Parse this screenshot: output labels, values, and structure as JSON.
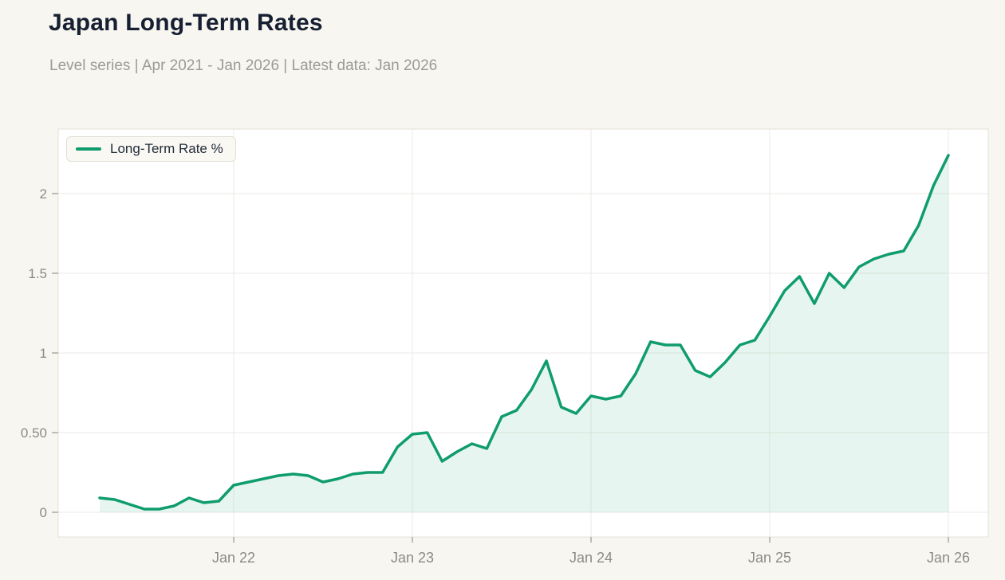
{
  "header": {
    "title": "Japan Long-Term Rates",
    "subtitle": "Level series | Apr 2021 - Jan 2026 | Latest data: Jan 2026"
  },
  "legend": {
    "label": "Long-Term Rate %"
  },
  "colors": {
    "background": "#f8f6f0",
    "plot_background": "#ffffff",
    "line": "#0f9c6e",
    "area_fill": "rgba(15,156,110,0.10)",
    "grid": "#ebeae6",
    "axis_border": "#e3e0d9",
    "tick": "#aaa8a2",
    "tick_label": "#8c8a86",
    "title": "#172033",
    "subtitle": "#9b9a95"
  },
  "chart_data": {
    "type": "area",
    "title": "Japan Long-Term Rates",
    "xlabel": "",
    "ylabel": "",
    "grid": true,
    "legend_position": "top-left",
    "x": [
      "2021-04",
      "2021-05",
      "2021-06",
      "2021-07",
      "2021-08",
      "2021-09",
      "2021-10",
      "2021-11",
      "2021-12",
      "2022-01",
      "2022-02",
      "2022-03",
      "2022-04",
      "2022-05",
      "2022-06",
      "2022-07",
      "2022-08",
      "2022-09",
      "2022-10",
      "2022-11",
      "2022-12",
      "2023-01",
      "2023-02",
      "2023-03",
      "2023-04",
      "2023-05",
      "2023-06",
      "2023-07",
      "2023-08",
      "2023-09",
      "2023-10",
      "2023-11",
      "2023-12",
      "2024-01",
      "2024-02",
      "2024-03",
      "2024-04",
      "2024-05",
      "2024-06",
      "2024-07",
      "2024-08",
      "2024-09",
      "2024-10",
      "2024-11",
      "2024-12",
      "2025-01",
      "2025-02",
      "2025-03",
      "2025-04",
      "2025-05",
      "2025-06",
      "2025-07",
      "2025-08",
      "2025-09",
      "2025-10",
      "2025-11",
      "2025-12",
      "2026-01"
    ],
    "series": [
      {
        "name": "Long-Term Rate %",
        "values": [
          0.09,
          0.08,
          0.05,
          0.02,
          0.02,
          0.04,
          0.09,
          0.06,
          0.07,
          0.17,
          0.19,
          0.21,
          0.23,
          0.24,
          0.23,
          0.19,
          0.21,
          0.24,
          0.25,
          0.25,
          0.41,
          0.49,
          0.5,
          0.32,
          0.38,
          0.43,
          0.4,
          0.6,
          0.64,
          0.77,
          0.95,
          0.66,
          0.62,
          0.73,
          0.71,
          0.73,
          0.87,
          1.07,
          1.05,
          1.05,
          0.89,
          0.85,
          0.94,
          1.05,
          1.08,
          1.23,
          1.39,
          1.48,
          1.31,
          1.5,
          1.41,
          1.54,
          1.59,
          1.62,
          1.64,
          1.8,
          2.05,
          2.24
        ]
      }
    ],
    "x_tick_indices": [
      9,
      21,
      33,
      45,
      57
    ],
    "x_tick_labels": [
      "Jan 22",
      "Jan 23",
      "Jan 24",
      "Jan 25",
      "Jan 26"
    ],
    "y_ticks": [
      0,
      0.5,
      1,
      1.5,
      2
    ],
    "y_tick_labels": [
      "0",
      "0.50",
      "1",
      "1.5",
      "2"
    ],
    "ylim": [
      -0.155,
      2.405
    ]
  }
}
